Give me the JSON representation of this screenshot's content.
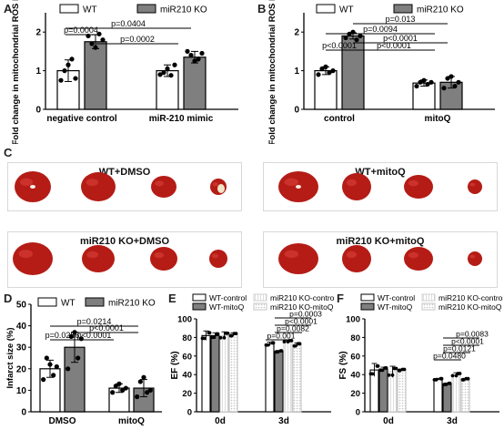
{
  "colors": {
    "dark_gray": "#7f7f7f",
    "black": "#000000",
    "white": "#ffffff",
    "heart": "#b51c16",
    "light_pattern": "#d9d9d9"
  },
  "panel_labels": [
    "A",
    "B",
    "C",
    "D",
    "E",
    "F"
  ],
  "chart_data": [
    {
      "id": "A",
      "type": "bar",
      "ylabel": "Fold change in mitochondrial ROS levels",
      "ylim": [
        0,
        2.5
      ],
      "yticks": [
        "0",
        "1",
        "2"
      ],
      "categories": [
        "negative control",
        "miR-210 mimic"
      ],
      "series": [
        {
          "name": "WT",
          "values": [
            1.0,
            1.0
          ],
          "errors": [
            0.28,
            0.15
          ],
          "points": [
            [
              0.75,
              1.0,
              1.15,
              1.3,
              0.8
            ],
            [
              0.9,
              0.95,
              1.05,
              0.88,
              1.15
            ]
          ]
        },
        {
          "name": "miR210 KO",
          "values": [
            1.75,
            1.35
          ],
          "errors": [
            0.18,
            0.15
          ],
          "points": [
            [
              1.9,
              1.7,
              1.6,
              1.95,
              1.8
            ],
            [
              1.5,
              1.4,
              1.25,
              1.3,
              1.45
            ]
          ]
        }
      ],
      "annotations": [
        "p=0.0004",
        "p=0.0404",
        "p=0.0002"
      ]
    },
    {
      "id": "B",
      "type": "bar",
      "ylabel": "Fold change in mitochondrial ROS levels",
      "ylim": [
        0,
        2.5
      ],
      "yticks": [
        "0",
        "1",
        "2"
      ],
      "categories": [
        "control",
        "mitoQ"
      ],
      "series": [
        {
          "name": "WT",
          "values": [
            1.0,
            0.68
          ],
          "errors": [
            0.1,
            0.08
          ],
          "points": [
            [
              0.9,
              1.05,
              1.1,
              0.95,
              1.0
            ],
            [
              0.6,
              0.7,
              0.75,
              0.65,
              0.7
            ]
          ]
        },
        {
          "name": "miR210 KO",
          "values": [
            1.9,
            0.7
          ],
          "errors": [
            0.08,
            0.15
          ],
          "points": [
            [
              1.85,
              1.95,
              2.0,
              1.8,
              1.9
            ],
            [
              0.55,
              0.8,
              0.85,
              0.6,
              0.7
            ]
          ]
        }
      ],
      "annotations": [
        "p=0.013",
        "p=0.0094",
        "p<0.0001",
        "p<0.0001",
        "p<0.0001"
      ]
    },
    {
      "id": "D",
      "type": "bar",
      "ylabel": "Infarct size (%)",
      "ylim": [
        0,
        50
      ],
      "yticks": [
        "0",
        "10",
        "20",
        "30",
        "40",
        "50"
      ],
      "categories": [
        "DMSO",
        "mitoQ"
      ],
      "series": [
        {
          "name": "WT",
          "values": [
            20,
            11
          ],
          "errors": [
            4,
            2
          ],
          "points": [
            [
              15,
              25,
              22,
              17,
              21
            ],
            [
              9,
              12,
              13,
              10,
              11
            ]
          ]
        },
        {
          "name": "miR210 KO",
          "values": [
            30,
            11
          ],
          "errors": [
            7,
            4
          ],
          "points": [
            [
              20,
              35,
              37,
              25,
              34
            ],
            [
              7,
              14,
              16,
              9,
              10
            ]
          ]
        }
      ],
      "annotations": [
        "p=0.0214",
        "p<0.0001",
        "p=0.0286",
        "p<0.0001"
      ]
    },
    {
      "id": "E",
      "type": "bar",
      "ylabel": "EF (%)",
      "ylim": [
        0,
        100
      ],
      "yticks": [
        "0",
        "20",
        "40",
        "60",
        "80",
        "100"
      ],
      "categories": [
        "0d",
        "3d"
      ],
      "series": [
        {
          "name": "WT-control",
          "values": [
            82,
            73
          ],
          "errors": [
            5,
            2
          ]
        },
        {
          "name": "WT-mitoQ",
          "values": [
            82,
            65
          ],
          "errors": [
            3,
            1
          ]
        },
        {
          "name": "miR210 KO-control",
          "values": [
            82,
            76
          ],
          "errors": [
            4,
            1
          ]
        },
        {
          "name": "miR210 KO-mitoQ",
          "values": [
            83,
            72
          ],
          "errors": [
            2,
            2
          ]
        }
      ],
      "annotations": [
        "p=0.0003",
        "p<0.0001",
        "p=0.0082",
        "p=0.001"
      ]
    },
    {
      "id": "F",
      "type": "bar",
      "ylabel": "FS (%)",
      "ylim": [
        0,
        100
      ],
      "yticks": [
        "0",
        "20",
        "40",
        "60",
        "80",
        "100"
      ],
      "categories": [
        "0d",
        "3d"
      ],
      "series": [
        {
          "name": "WT-control",
          "values": [
            45,
            35
          ],
          "errors": [
            7,
            1
          ]
        },
        {
          "name": "WT-mitoQ",
          "values": [
            46,
            30
          ],
          "errors": [
            2,
            1
          ]
        },
        {
          "name": "miR210 KO-control",
          "values": [
            43,
            40
          ],
          "errors": [
            6,
            2
          ]
        },
        {
          "name": "miR210 KO-mitoQ",
          "values": [
            45,
            35
          ],
          "errors": [
            1,
            1
          ]
        }
      ],
      "annotations": [
        "p=0.0083",
        "p<0.0001",
        "p=0.0121",
        "p=0.0480"
      ]
    }
  ],
  "panel_c": {
    "titles": [
      "WT+DMSO",
      "WT+mitoQ",
      "miR210 KO+DMSO",
      "miR210 KO+mitoQ"
    ]
  }
}
